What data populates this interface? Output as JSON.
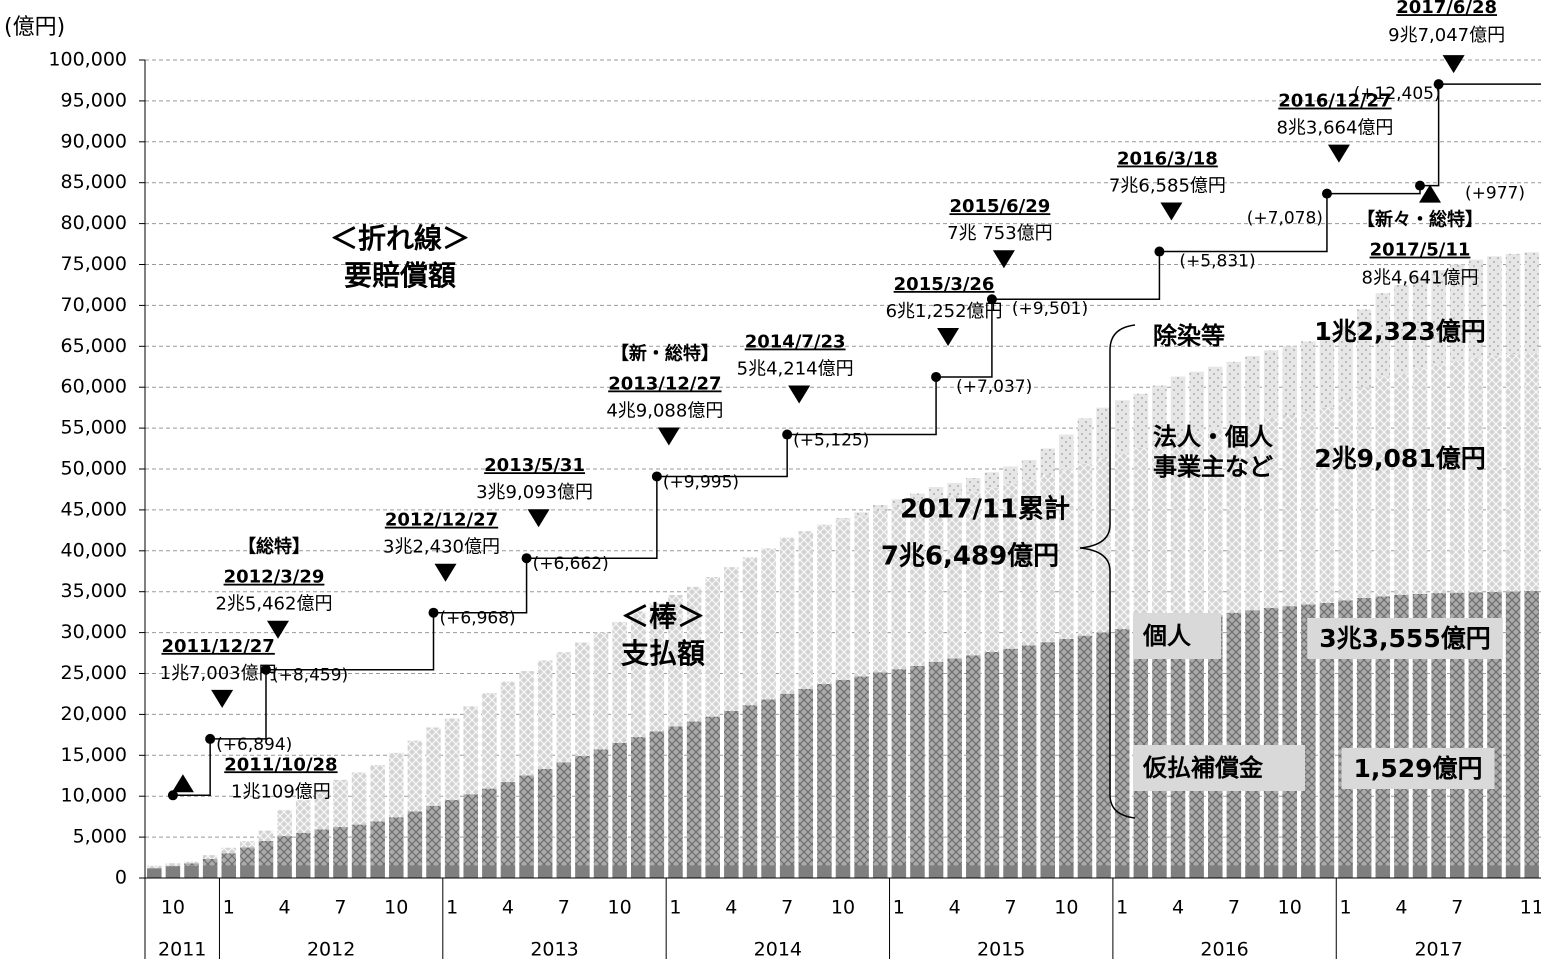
{
  "chart_data": {
    "type": "bar",
    "stacked": true,
    "title": "＜棒＞",
    "subtitle": "支払額",
    "y_unit": "(億円)",
    "ylim": [
      0,
      100000
    ],
    "yticks": [
      0,
      {
        "value": 5000,
        "label": "5,000"
      },
      {
        "value": 10000,
        "label": "10,000"
      },
      {
        "value": 15000,
        "label": "15,000"
      },
      {
        "value": 20000,
        "label": "20,000"
      },
      {
        "value": 25000,
        "label": "25,000"
      },
      {
        "value": 30000,
        "label": "30,000"
      },
      {
        "value": 35000,
        "label": "35,000"
      },
      {
        "value": 40000,
        "label": "40,000"
      },
      {
        "value": 45000,
        "label": "45,000"
      },
      {
        "value": 50000,
        "label": "50,000"
      },
      {
        "value": 55000,
        "label": "55,000"
      },
      {
        "value": 60000,
        "label": "60,000"
      },
      {
        "value": 65000,
        "label": "65,000"
      },
      {
        "value": 70000,
        "label": "70,000"
      },
      {
        "value": 75000,
        "label": "75,000"
      },
      {
        "value": 80000,
        "label": "80,000"
      },
      {
        "value": 85000,
        "label": "85,000"
      },
      {
        "value": 90000,
        "label": "90,000"
      },
      {
        "value": 95000,
        "label": "95,000"
      },
      {
        "value": 100000,
        "label": "100,000"
      }
    ],
    "grid": true,
    "categories": [
      null,
      10,
      null,
      null,
      1,
      null,
      null,
      4,
      null,
      null,
      7,
      null,
      null,
      10,
      null,
      null,
      1,
      null,
      null,
      4,
      null,
      null,
      7,
      null,
      null,
      10,
      null,
      null,
      1,
      null,
      null,
      4,
      null,
      null,
      7,
      null,
      null,
      10,
      null,
      null,
      1,
      null,
      null,
      4,
      null,
      null,
      7,
      null,
      null,
      10,
      null,
      null,
      1,
      null,
      null,
      4,
      null,
      null,
      7,
      null,
      null,
      10,
      null,
      null,
      1,
      null,
      null,
      4,
      null,
      null,
      7,
      null,
      null,
      null,
      11
    ],
    "years": [
      "2011",
      "2012",
      "2013",
      "2014",
      "2015",
      "2016",
      "2017"
    ],
    "series": [
      {
        "name": "仮払補償金",
        "color": "#7f7f7f",
        "pattern": "solid",
        "final_label": "1,529億円",
        "values": [
          1200,
          1400,
          1500,
          1529,
          1529,
          1529,
          1529,
          1529,
          1529,
          1529,
          1529,
          1529,
          1529,
          1529,
          1529,
          1529,
          1529,
          1529,
          1529,
          1529,
          1529,
          1529,
          1529,
          1529,
          1529,
          1529,
          1529,
          1529,
          1529,
          1529,
          1529,
          1529,
          1529,
          1529,
          1529,
          1529,
          1529,
          1529,
          1529,
          1529,
          1529,
          1529,
          1529,
          1529,
          1529,
          1529,
          1529,
          1529,
          1529,
          1529,
          1529,
          1529,
          1529,
          1529,
          1529,
          1529,
          1529,
          1529,
          1529,
          1529,
          1529,
          1529,
          1529,
          1529,
          1529,
          1529,
          1529,
          1529,
          1529,
          1529,
          1529,
          1529,
          1529,
          1529,
          1529
        ]
      },
      {
        "name": "個人",
        "color": "#ababab",
        "pattern": "cross-dark",
        "final_label": "3兆3,555億円",
        "values": [
          0,
          100,
          300,
          800,
          1500,
          2200,
          3000,
          3600,
          4000,
          4400,
          4700,
          5000,
          5400,
          5900,
          6600,
          7300,
          8000,
          8700,
          9400,
          10200,
          11000,
          11800,
          12600,
          13400,
          14200,
          15000,
          15700,
          16400,
          17000,
          17600,
          18200,
          18900,
          19600,
          20300,
          21000,
          21600,
          22200,
          22700,
          23100,
          23600,
          24000,
          24400,
          24900,
          25300,
          25700,
          26100,
          26500,
          26900,
          27300,
          27700,
          28100,
          28500,
          28900,
          29300,
          29700,
          30000,
          30300,
          30600,
          30900,
          31200,
          31500,
          31700,
          31900,
          32100,
          32400,
          32700,
          32900,
          33100,
          33200,
          33300,
          33350,
          33400,
          33450,
          33500,
          33555
        ]
      },
      {
        "name": "法人・個人事業主など",
        "color": "#d3d3d3",
        "pattern": "cross-light",
        "final_label": "2兆9,081億円",
        "values": [
          300,
          300,
          200,
          470,
          670,
          770,
          1270,
          3170,
          3970,
          4870,
          5770,
          6370,
          6870,
          7870,
          8670,
          9570,
          9970,
          10770,
          11670,
          12270,
          12770,
          13270,
          13470,
          13870,
          14270,
          14770,
          15370,
          15670,
          16070,
          16470,
          17070,
          17570,
          18070,
          18470,
          19070,
          19270,
          19470,
          19470,
          19570,
          19770,
          19870,
          19970,
          20070,
          19970,
          19970,
          20070,
          20170,
          20270,
          20470,
          20670,
          20970,
          21270,
          21570,
          21770,
          22070,
          22570,
          22670,
          22770,
          22870,
          23070,
          23270,
          23370,
          23570,
          23870,
          24570,
          25770,
          26870,
          27070,
          27570,
          27970,
          28320,
          28670,
          28870,
          29020,
          29081
        ]
      },
      {
        "name": "除染等",
        "color": "#e6e6e6",
        "pattern": "dots",
        "final_label": "1兆2,323億円",
        "values": [
          0,
          0,
          0,
          0,
          0,
          0,
          0,
          0,
          0,
          0,
          0,
          0,
          0,
          0,
          0,
          0,
          0,
          0,
          0,
          0,
          0,
          0,
          0,
          0,
          0,
          0,
          0,
          0,
          0,
          0,
          0,
          0,
          0,
          0,
          0,
          0,
          0,
          300,
          500,
          700,
          900,
          1100,
          1300,
          1500,
          1700,
          1900,
          2100,
          2400,
          3200,
          4300,
          5600,
          6200,
          6400,
          6600,
          6900,
          7200,
          7400,
          7600,
          7800,
          8000,
          8200,
          8400,
          8600,
          8800,
          9000,
          9500,
          10200,
          10800,
          11200,
          11500,
          11800,
          12000,
          12150,
          12250,
          12323
        ]
      }
    ],
    "total": {
      "title": "2017/11累計",
      "label": "7兆6,489億円"
    },
    "line": {
      "type": "step",
      "title": "＜折れ線＞",
      "subtitle": "要賠償額",
      "color": "#000000",
      "x": [
        "2011/10/28",
        "2011/12/27",
        "2012/3/29",
        "2012/12/27",
        "2013/5/31",
        "2013/12/27",
        "2014/7/23",
        "2015/3/26",
        "2015/6/29",
        "2016/3/18",
        "2016/12/27",
        "2017/5/11",
        "2017/6/28"
      ],
      "values": [
        10109,
        17003,
        25462,
        32430,
        39093,
        49088,
        54214,
        61252,
        70753,
        76585,
        83664,
        84641,
        97047
      ],
      "value_labels": [
        "1兆109億円",
        "1兆7,003億円",
        "2兆5,462億円",
        "3兆2,430億円",
        "3兆9,093億円",
        "4兆9,088億円",
        "5兆4,214億円",
        "6兆1,252億円",
        "7兆 753億円",
        "7兆6,585億円",
        "8兆3,664億円",
        "8兆4,641億円",
        "9兆7,047億円"
      ],
      "tags": [
        null,
        null,
        "【総特】",
        null,
        null,
        "【新・総特】",
        null,
        null,
        null,
        null,
        null,
        "【新々・総特】",
        null
      ],
      "increments": [
        null,
        "(+6,894)",
        "(+8,459)",
        "(+6,968)",
        "(+6,662)",
        "(+9,995)",
        "(+5,125)",
        "(+7,037)",
        "(+9,501)",
        "(+5,831)",
        "(+7,078)",
        "(+977)",
        "(+12,405)"
      ]
    }
  }
}
